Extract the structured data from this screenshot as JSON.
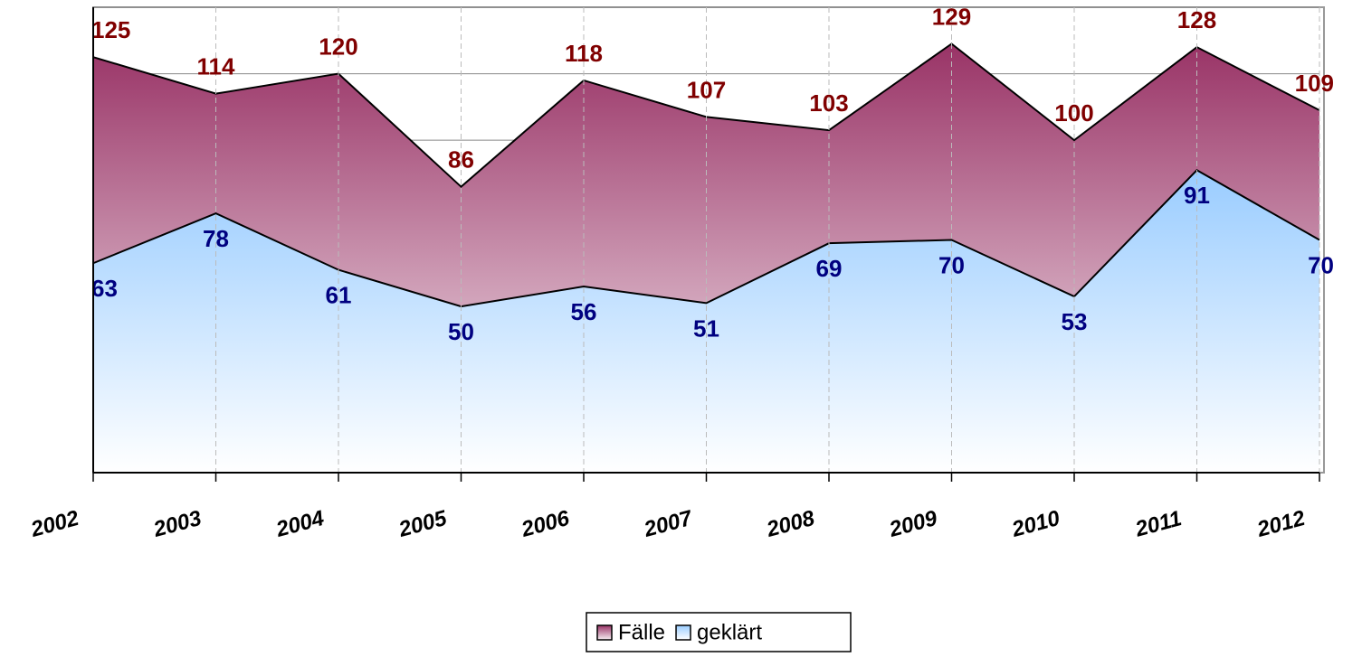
{
  "chart_data": {
    "type": "area",
    "categories": [
      "2002",
      "2003",
      "2004",
      "2005",
      "2006",
      "2007",
      "2008",
      "2009",
      "2010",
      "2011",
      "2012"
    ],
    "series": [
      {
        "name": "Fälle",
        "color": "#993366",
        "values": [
          125,
          114,
          120,
          86,
          118,
          107,
          103,
          129,
          100,
          128,
          109
        ]
      },
      {
        "name": "geklärt",
        "color": "#99ccff",
        "values": [
          63,
          78,
          61,
          50,
          56,
          51,
          69,
          70,
          53,
          91,
          70
        ]
      }
    ],
    "ylim": [
      0,
      140
    ],
    "yticks": [
      0,
      20,
      40,
      60,
      80,
      100,
      120,
      140
    ],
    "grid": true,
    "legend": "bottom"
  }
}
